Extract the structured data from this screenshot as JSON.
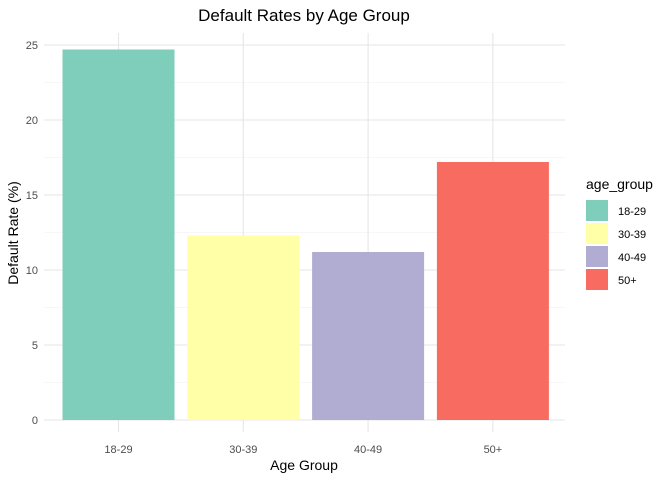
{
  "chart_data": {
    "type": "bar",
    "title": "Default Rates by Age Group",
    "xlabel": "Age Group",
    "ylabel": "Default Rate (%)",
    "categories": [
      "18-29",
      "30-39",
      "40-49",
      "50+"
    ],
    "values": [
      24.7,
      12.3,
      11.2,
      17.2
    ],
    "ylim": [
      0,
      25.9
    ],
    "yticks": [
      "0",
      "5",
      "10",
      "15",
      "20",
      "25"
    ],
    "colors": [
      "#7fcdbb",
      "#ffffa8",
      "#b0acd2",
      "#f76b61"
    ],
    "grid": true,
    "legend": {
      "title": "age_group",
      "position": "right",
      "entries": [
        "18-29",
        "30-39",
        "40-49",
        "50+"
      ]
    }
  }
}
